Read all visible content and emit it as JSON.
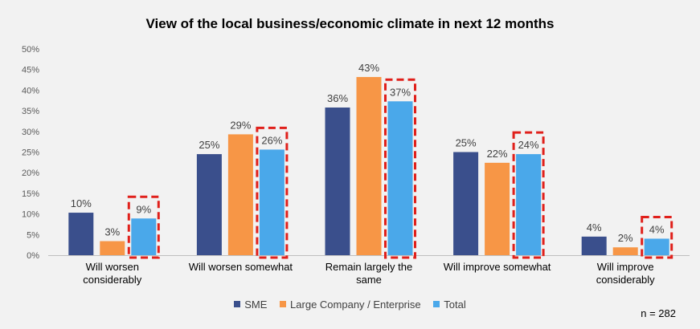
{
  "chart_data": {
    "type": "bar",
    "title": "View of the local business/economic climate in next 12 months",
    "categories": [
      [
        "Will worsen",
        "considerably"
      ],
      [
        "Will worsen somewhat"
      ],
      [
        "Remain largely the",
        "same"
      ],
      [
        "Will improve somewhat"
      ],
      [
        "Will improve",
        "considerably"
      ]
    ],
    "series": [
      {
        "name": "SME",
        "values": [
          10,
          25,
          36,
          25,
          4
        ],
        "color": "#3a4f8c"
      },
      {
        "name": "Large Company / Enterprise",
        "values": [
          3,
          29,
          43,
          22,
          2
        ],
        "color": "#f79646"
      },
      {
        "name": "Total",
        "values": [
          9,
          26,
          37,
          24,
          4
        ],
        "color": "#4aa8ea"
      }
    ],
    "bar_heights": [
      [
        10.3,
        24.5,
        35.8,
        25.0,
        4.5
      ],
      [
        3.4,
        29.3,
        43.2,
        22.4,
        1.9
      ],
      [
        8.9,
        25.6,
        37.3,
        24.5,
        4.0
      ]
    ],
    "value_labels": [
      [
        "10%",
        "25%",
        "36%",
        "25%",
        "4%"
      ],
      [
        "3%",
        "29%",
        "43%",
        "22%",
        "2%"
      ],
      [
        "9%",
        "26%",
        "37%",
        "24%",
        "4%"
      ]
    ],
    "highlighted_series": "Total",
    "highlight_color": "#e0201b",
    "y_ticks": [
      "0%",
      "5%",
      "10%",
      "15%",
      "20%",
      "25%",
      "30%",
      "35%",
      "40%",
      "45%",
      "50%"
    ],
    "ylim": [
      0,
      50
    ],
    "grid": false,
    "legend_position": "bottom",
    "sample_note": "n = 282"
  }
}
